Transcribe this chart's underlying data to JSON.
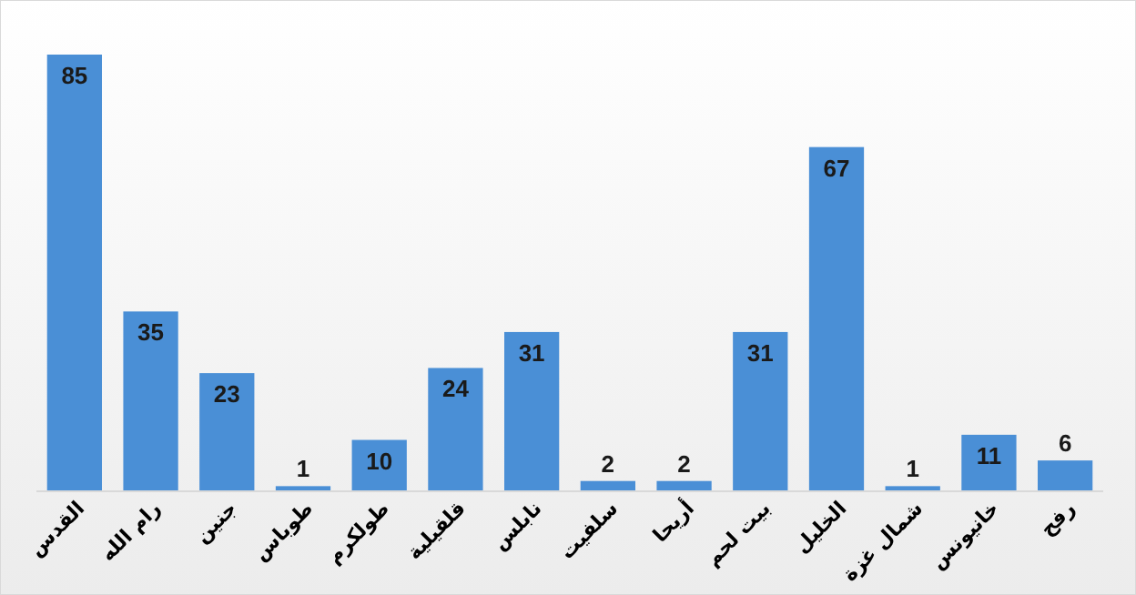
{
  "chart_data": {
    "type": "bar",
    "categories": [
      "القدس",
      "رام الله",
      "جنين",
      "طوباس",
      "طولكرم",
      "قلقيلية",
      "نابلس",
      "سلفيت",
      "أريحا",
      "بيت لحم",
      "الخليل",
      "شمال غزة",
      "خانيونس",
      "رفح"
    ],
    "values": [
      85,
      35,
      23,
      1,
      10,
      24,
      31,
      2,
      2,
      31,
      67,
      1,
      11,
      6
    ],
    "color": "#4a8fd6",
    "data_labels": true,
    "grid": false
  }
}
